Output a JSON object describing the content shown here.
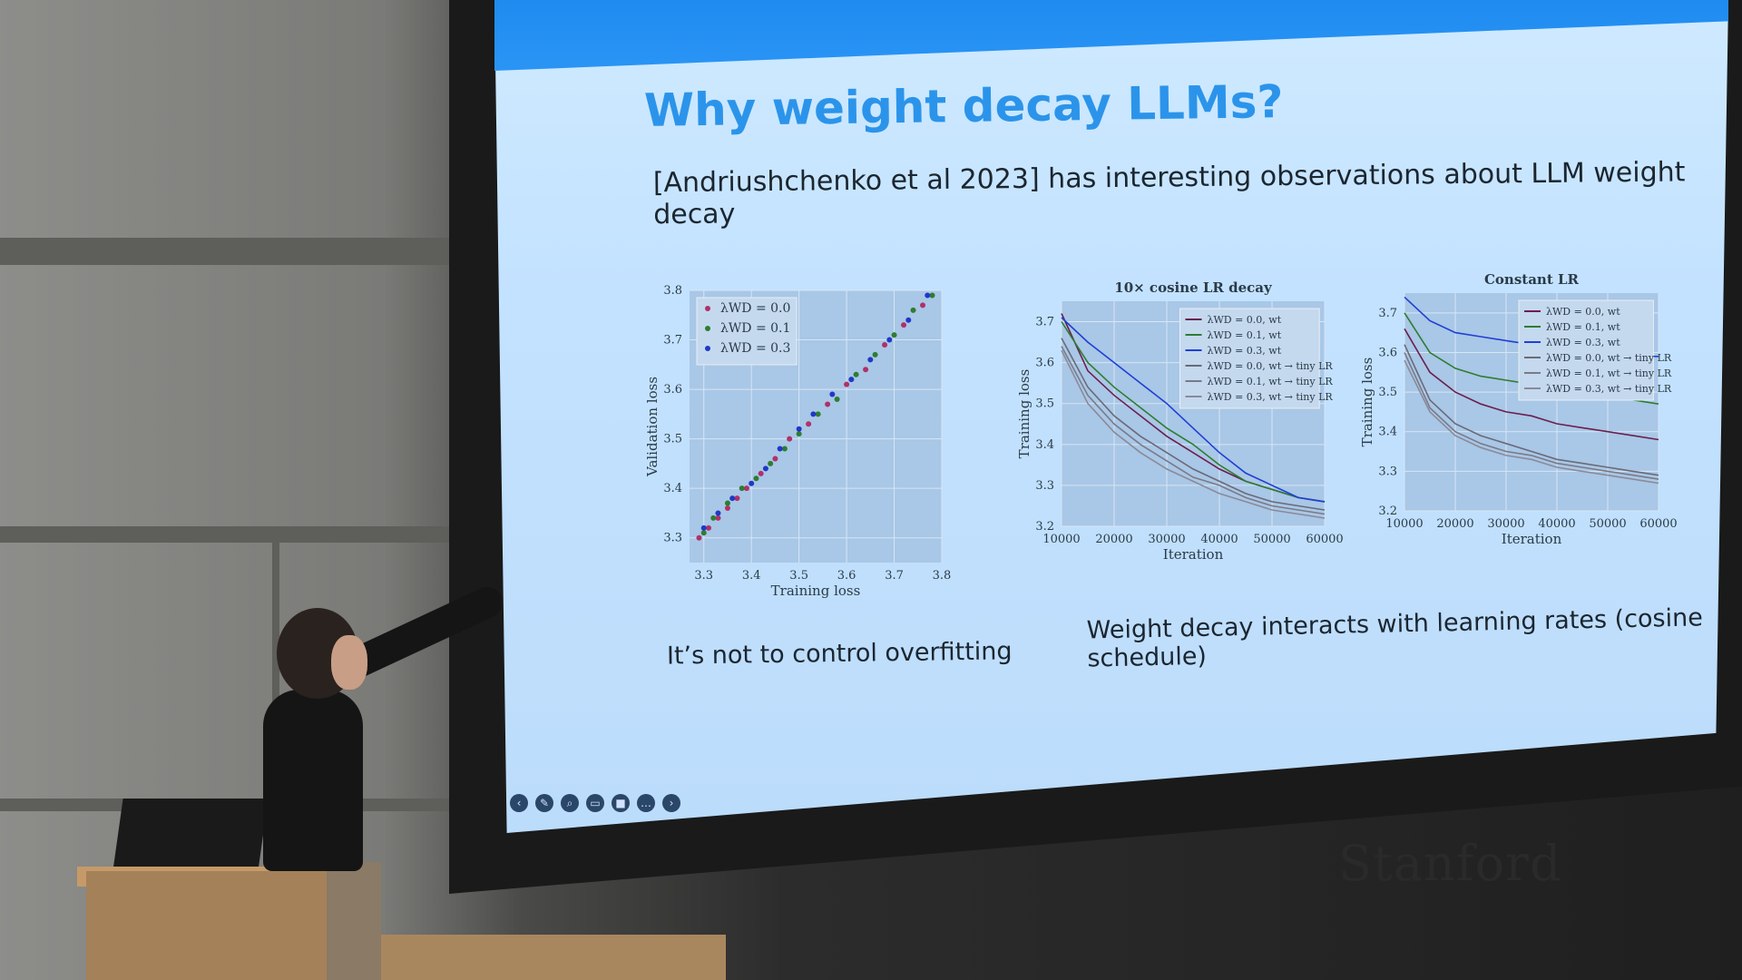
{
  "slide": {
    "title": "Why weight decay LLMs?",
    "subtitle": "[Andriushchenko et al 2023] has interesting observations about LLM weight decay",
    "caption_left": "It’s not  to control overfitting",
    "caption_right": "Weight decay interacts with learning rates (cosine schedule)"
  },
  "watermark": "Stanford",
  "toolbar_icons": [
    "back-icon",
    "pen-icon",
    "zoom-icon",
    "cc-icon",
    "video-icon",
    "more-icon",
    "forward-icon"
  ],
  "colors": {
    "topbar": "#1f8bf0",
    "title": "#2b94ea",
    "series_dark": "#6b1f4f",
    "series_green": "#2e7d32",
    "series_blue": "#1f3fd6"
  },
  "chart_data": [
    {
      "type": "scatter",
      "xlabel": "Training loss",
      "ylabel": "Validation loss",
      "xlim": [
        3.27,
        3.8
      ],
      "ylim": [
        3.25,
        3.8
      ],
      "xticks": [
        "3.3",
        "3.4",
        "3.5",
        "3.6",
        "3.7",
        "3.8"
      ],
      "yticks": [
        "3.3",
        "3.4",
        "3.5",
        "3.6",
        "3.7",
        "3.8"
      ],
      "legend": [
        "λWD = 0.0",
        "λWD = 0.1",
        "λWD = 0.3"
      ],
      "legend_position": "top-left",
      "series": [
        {
          "name": "λWD = 0.0",
          "color": "#b0306a",
          "points": [
            [
              3.29,
              3.3
            ],
            [
              3.31,
              3.32
            ],
            [
              3.33,
              3.34
            ],
            [
              3.35,
              3.36
            ],
            [
              3.37,
              3.38
            ],
            [
              3.39,
              3.4
            ],
            [
              3.42,
              3.43
            ],
            [
              3.45,
              3.46
            ],
            [
              3.48,
              3.5
            ],
            [
              3.52,
              3.53
            ],
            [
              3.56,
              3.57
            ],
            [
              3.6,
              3.61
            ],
            [
              3.64,
              3.64
            ],
            [
              3.68,
              3.69
            ],
            [
              3.72,
              3.73
            ],
            [
              3.76,
              3.77
            ]
          ]
        },
        {
          "name": "λWD = 0.1",
          "color": "#2e7d32",
          "points": [
            [
              3.3,
              3.31
            ],
            [
              3.32,
              3.34
            ],
            [
              3.35,
              3.37
            ],
            [
              3.38,
              3.4
            ],
            [
              3.41,
              3.42
            ],
            [
              3.44,
              3.45
            ],
            [
              3.47,
              3.48
            ],
            [
              3.5,
              3.51
            ],
            [
              3.54,
              3.55
            ],
            [
              3.58,
              3.58
            ],
            [
              3.62,
              3.63
            ],
            [
              3.66,
              3.67
            ],
            [
              3.7,
              3.71
            ],
            [
              3.74,
              3.76
            ],
            [
              3.78,
              3.79
            ]
          ]
        },
        {
          "name": "λWD = 0.3",
          "color": "#2038c8",
          "points": [
            [
              3.3,
              3.32
            ],
            [
              3.33,
              3.35
            ],
            [
              3.36,
              3.38
            ],
            [
              3.4,
              3.41
            ],
            [
              3.43,
              3.44
            ],
            [
              3.46,
              3.48
            ],
            [
              3.5,
              3.52
            ],
            [
              3.53,
              3.55
            ],
            [
              3.57,
              3.59
            ],
            [
              3.61,
              3.62
            ],
            [
              3.65,
              3.66
            ],
            [
              3.69,
              3.7
            ],
            [
              3.73,
              3.74
            ],
            [
              3.77,
              3.79
            ]
          ]
        }
      ]
    },
    {
      "type": "line",
      "title": "10× cosine LR decay",
      "xlabel": "Iteration",
      "ylabel": "Training loss",
      "xlim": [
        10000,
        60000
      ],
      "ylim": [
        3.2,
        3.75
      ],
      "xticks": [
        "10000",
        "20000",
        "30000",
        "40000",
        "50000",
        "60000"
      ],
      "yticks": [
        "3.2",
        "3.3",
        "3.4",
        "3.5",
        "3.6",
        "3.7"
      ],
      "legend": [
        "λWD = 0.0, wt",
        "λWD = 0.1, wt",
        "λWD = 0.3, wt",
        "λWD = 0.0, wt → tiny LR",
        "λWD = 0.1, wt → tiny LR",
        "λWD = 0.3, wt → tiny LR"
      ],
      "x": [
        10000,
        15000,
        20000,
        25000,
        30000,
        35000,
        40000,
        45000,
        50000,
        55000,
        60000
      ],
      "series": [
        {
          "name": "λWD = 0.0, wt",
          "color": "#6b1f4f",
          "values": [
            3.72,
            3.58,
            3.52,
            3.47,
            3.42,
            3.38,
            3.34,
            3.31,
            3.29,
            3.27,
            3.26
          ]
        },
        {
          "name": "λWD = 0.1, wt",
          "color": "#2e7d32",
          "values": [
            3.7,
            3.6,
            3.54,
            3.49,
            3.44,
            3.4,
            3.35,
            3.31,
            3.29,
            3.27,
            3.26
          ]
        },
        {
          "name": "λWD = 0.3, wt",
          "color": "#1f3fd6",
          "values": [
            3.71,
            3.65,
            3.6,
            3.55,
            3.5,
            3.44,
            3.38,
            3.33,
            3.3,
            3.27,
            3.26
          ]
        },
        {
          "name": "λWD = 0.0, wt → tiny LR",
          "color": "#6a6a78",
          "values": [
            3.66,
            3.54,
            3.47,
            3.42,
            3.38,
            3.34,
            3.31,
            3.28,
            3.26,
            3.25,
            3.24
          ]
        },
        {
          "name": "λWD = 0.1, wt → tiny LR",
          "color": "#7a7a88",
          "values": [
            3.64,
            3.52,
            3.45,
            3.4,
            3.36,
            3.32,
            3.3,
            3.27,
            3.25,
            3.24,
            3.23
          ]
        },
        {
          "name": "λWD = 0.3, wt → tiny LR",
          "color": "#8a8a98",
          "values": [
            3.63,
            3.5,
            3.43,
            3.38,
            3.34,
            3.31,
            3.28,
            3.26,
            3.24,
            3.23,
            3.22
          ]
        }
      ]
    },
    {
      "type": "line",
      "title": "Constant LR",
      "xlabel": "Iteration",
      "ylabel": "Training loss",
      "xlim": [
        10000,
        60000
      ],
      "ylim": [
        3.2,
        3.75
      ],
      "xticks": [
        "10000",
        "20000",
        "30000",
        "40000",
        "50000",
        "60000"
      ],
      "yticks": [
        "3.2",
        "3.3",
        "3.4",
        "3.5",
        "3.6",
        "3.7"
      ],
      "legend": [
        "λWD = 0.0, wt",
        "λWD = 0.1, wt",
        "λWD = 0.3, wt",
        "λWD = 0.0, wt → tiny LR",
        "λWD = 0.1, wt → tiny LR",
        "λWD = 0.3, wt → tiny LR"
      ],
      "x": [
        10000,
        15000,
        20000,
        25000,
        30000,
        35000,
        40000,
        45000,
        50000,
        55000,
        60000
      ],
      "series": [
        {
          "name": "λWD = 0.0, wt",
          "color": "#6b1f4f",
          "values": [
            3.66,
            3.55,
            3.5,
            3.47,
            3.45,
            3.44,
            3.42,
            3.41,
            3.4,
            3.39,
            3.38
          ]
        },
        {
          "name": "λWD = 0.1, wt",
          "color": "#2e7d32",
          "values": [
            3.7,
            3.6,
            3.56,
            3.54,
            3.53,
            3.52,
            3.51,
            3.5,
            3.49,
            3.48,
            3.47
          ]
        },
        {
          "name": "λWD = 0.3, wt",
          "color": "#1f3fd6",
          "values": [
            3.74,
            3.68,
            3.65,
            3.64,
            3.63,
            3.62,
            3.61,
            3.6,
            3.6,
            3.59,
            3.59
          ]
        },
        {
          "name": "λWD = 0.0, wt → tiny LR",
          "color": "#6a6a78",
          "values": [
            3.62,
            3.48,
            3.42,
            3.39,
            3.37,
            3.35,
            3.33,
            3.32,
            3.31,
            3.3,
            3.29
          ]
        },
        {
          "name": "λWD = 0.1, wt → tiny LR",
          "color": "#7a7a88",
          "values": [
            3.6,
            3.46,
            3.4,
            3.37,
            3.35,
            3.34,
            3.32,
            3.31,
            3.3,
            3.29,
            3.28
          ]
        },
        {
          "name": "λWD = 0.3, wt → tiny LR",
          "color": "#8a8a98",
          "values": [
            3.58,
            3.45,
            3.39,
            3.36,
            3.34,
            3.33,
            3.31,
            3.3,
            3.29,
            3.28,
            3.27
          ]
        }
      ]
    }
  ]
}
